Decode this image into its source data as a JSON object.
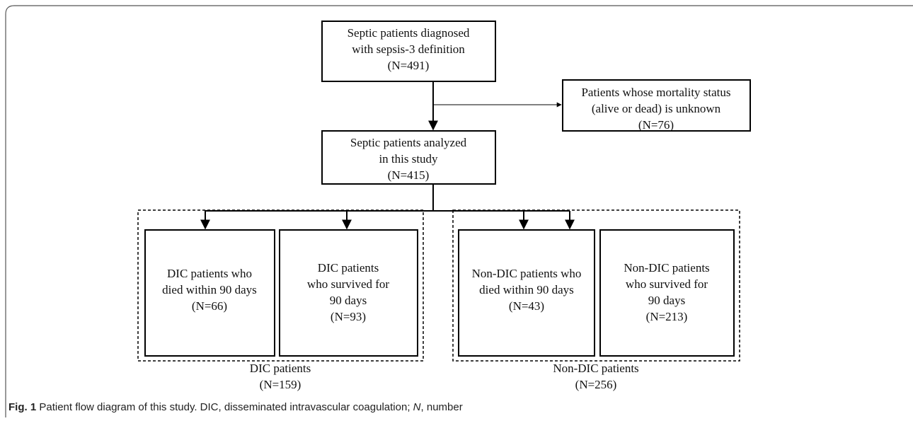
{
  "nodes": [
    {
      "lines": [
        "Septic patients diagnosed",
        "with sepsis-3 definition",
        "(N=491)"
      ]
    },
    {
      "lines": [
        "Patients whose mortality status",
        "(alive or dead) is unknown",
        "(N=76)"
      ]
    },
    {
      "lines": [
        "Septic patients analyzed",
        "in this study",
        "(N=415)"
      ]
    },
    {
      "lines": [
        "DIC patients who",
        "died within 90 days",
        "(N=66)"
      ]
    },
    {
      "lines": [
        "DIC patients",
        "who survived for",
        "90 days",
        "(N=93)"
      ]
    },
    {
      "lines": [
        "Non-DIC patients who",
        "died within 90 days",
        "(N=43)"
      ]
    },
    {
      "lines": [
        "Non-DIC patients",
        "who survived for",
        "90 days",
        "(N=213)"
      ]
    }
  ],
  "groups": [
    {
      "lines": [
        "DIC patients",
        "(N=159)"
      ]
    },
    {
      "lines": [
        "Non-DIC patients",
        "(N=256)"
      ]
    }
  ],
  "caption": {
    "label": "Fig. 1",
    "text": "Patient flow diagram of this study. DIC, disseminated intravascular coagulation;",
    "italic": "N",
    "tail": ", number"
  }
}
